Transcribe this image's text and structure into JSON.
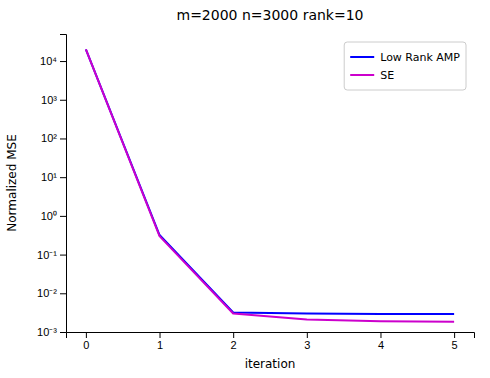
{
  "chart_data": {
    "type": "line",
    "title": "m=2000 n=3000 rank=10",
    "xlabel": "iteration",
    "ylabel": "Normalized MSE",
    "x": [
      0,
      1,
      2,
      3,
      4,
      5
    ],
    "series": [
      {
        "name": "Low Rank AMP",
        "color": "#0000ff",
        "values": [
          20000.0,
          0.32,
          0.0032,
          0.003,
          0.0029,
          0.0029
        ]
      },
      {
        "name": "SE",
        "color": "#cc00cc",
        "values": [
          20000.0,
          0.3,
          0.003,
          0.0021,
          0.0019,
          0.00185
        ]
      }
    ],
    "xlim": [
      -0.27,
      5.27
    ],
    "ylim": [
      0.001,
      50000.0
    ],
    "xticks": [
      0,
      1,
      2,
      3,
      4,
      5
    ],
    "yticks": [
      {
        "value": 0.001,
        "label": "10⁻³"
      },
      {
        "value": 0.01,
        "label": "10⁻²"
      },
      {
        "value": 0.1,
        "label": "10⁻¹"
      },
      {
        "value": 1,
        "label": "10⁰"
      },
      {
        "value": 10,
        "label": "10¹"
      },
      {
        "value": 100,
        "label": "10²"
      },
      {
        "value": 1000,
        "label": "10³"
      },
      {
        "value": 10000,
        "label": "10⁴"
      }
    ],
    "log": "y",
    "grid": false,
    "legend": "upper right"
  }
}
